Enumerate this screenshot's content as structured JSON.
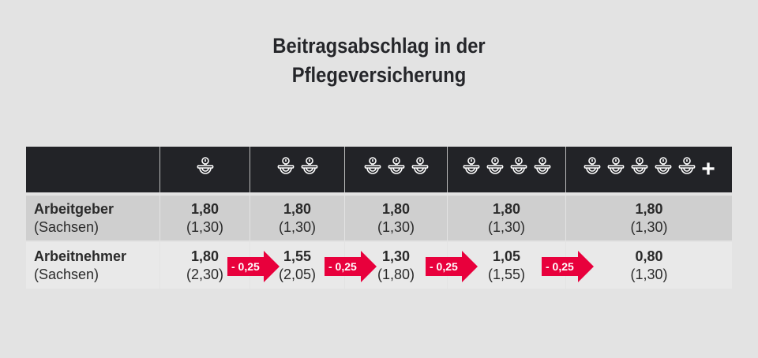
{
  "title_line1": "Beitragsabschlag in der",
  "title_line2": "Pflegeversicherung",
  "columns": [
    {
      "icons": 1,
      "plus": false
    },
    {
      "icons": 2,
      "plus": false
    },
    {
      "icons": 3,
      "plus": false
    },
    {
      "icons": 4,
      "plus": false
    },
    {
      "icons": 5,
      "plus": true
    }
  ],
  "plus_label": "+",
  "rows": [
    {
      "label": "Arbeitgeber",
      "sub": "(Sachsen)",
      "values": [
        [
          "1,80",
          "(1,30)"
        ],
        [
          "1,80",
          "(1,30)"
        ],
        [
          "1,80",
          "(1,30)"
        ],
        [
          "1,80",
          "(1,30)"
        ],
        [
          "1,80",
          "(1,30)"
        ]
      ]
    },
    {
      "label": "Arbeitnehmer",
      "sub": "(Sachsen)",
      "values": [
        [
          "1,80",
          "(2,30)"
        ],
        [
          "1,55",
          "(2,05)"
        ],
        [
          "1,30",
          "(1,80)"
        ],
        [
          "1,05",
          "(1,55)"
        ],
        [
          "0,80",
          "(1,30)"
        ]
      ]
    }
  ],
  "arrows": [
    "- 0,25",
    "- 0,25",
    "- 0,25",
    "- 0,25"
  ],
  "accent": "#e8003c"
}
